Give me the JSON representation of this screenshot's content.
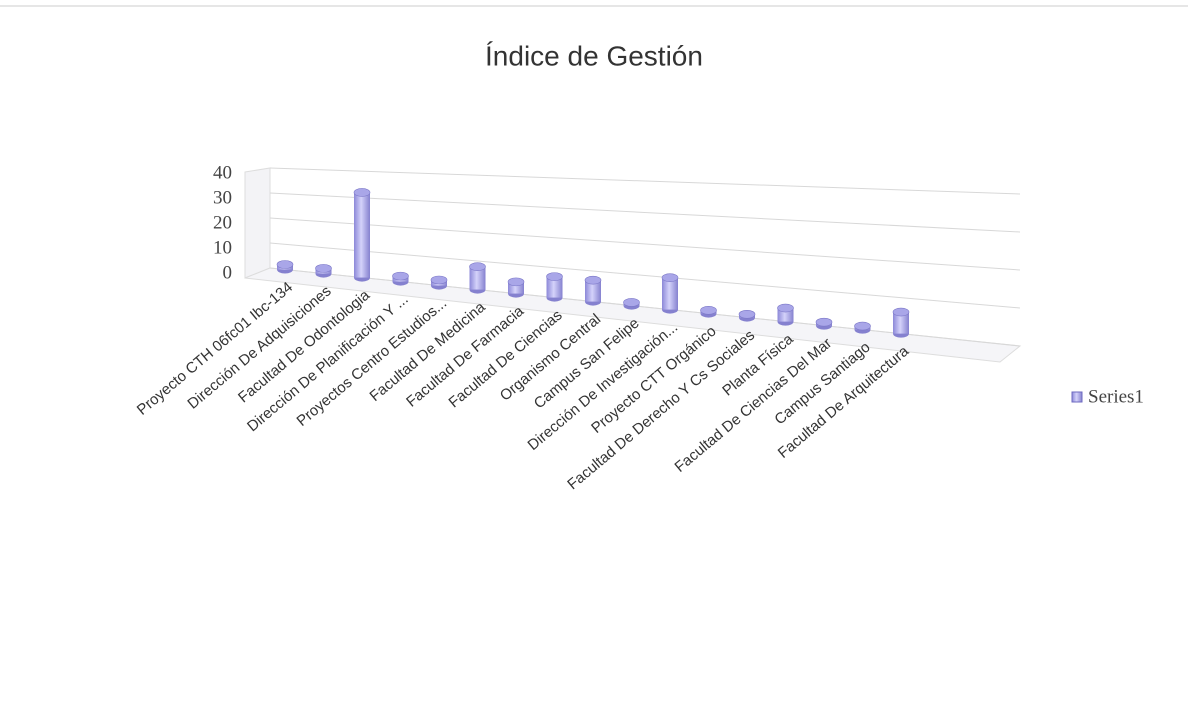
{
  "chart_data": {
    "type": "bar3d",
    "title": "Índice de Gestión",
    "categories": [
      "Proyecto CTH 06fc01 Ibc-134",
      "Dirección De Adquisiciones",
      "Facultad De Odontologia",
      "Dirección De Planificación Y ...",
      "Proyectos Centro Estudios...",
      "Facultad De Medicina",
      "Facultad De Farmacia",
      "Facultad De Ciencias",
      "Organismo Central",
      "Campus San Felipe",
      "Dirección De Investigación...",
      "Proyecto CTT Orgánico",
      "Facultad De Derecho Y Cs Sociales",
      "Planta Física",
      "Facultad De Ciencias Del Mar",
      "Campus Santiago",
      "Facultad De Arquitectura"
    ],
    "series": [
      {
        "name": "Series1",
        "color": "#a9a6e8",
        "values": [
          2,
          2,
          32,
          2,
          2,
          8,
          4,
          7,
          7,
          1,
          10,
          1,
          1,
          4,
          1,
          1,
          6
        ]
      }
    ],
    "ylim": [
      0,
      40
    ],
    "yticks": [
      0,
      10,
      20,
      30,
      40
    ],
    "grid": true,
    "legend": "right"
  }
}
